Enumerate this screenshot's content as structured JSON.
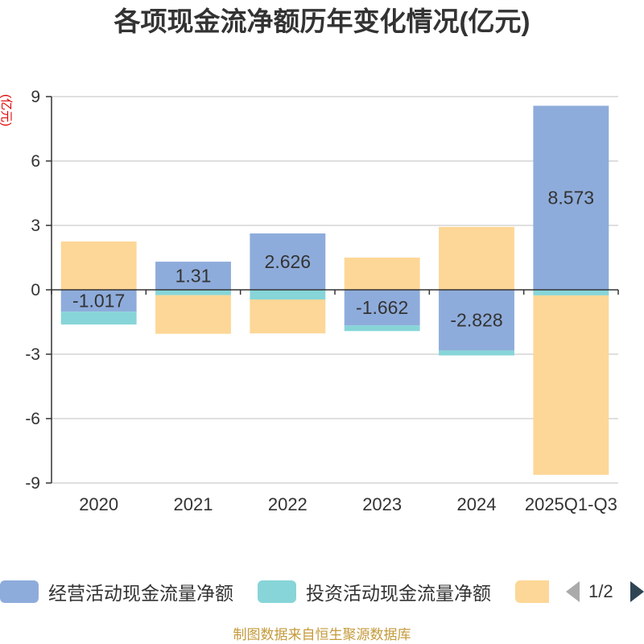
{
  "chart_data": {
    "type": "bar",
    "stacked": true,
    "title": "各项现金流净额历年变化情况(亿元)",
    "ylabel": "(亿元)",
    "xlabel": "",
    "ylim": [
      -9,
      9
    ],
    "yticks": [
      9,
      6,
      3,
      0,
      -3,
      -6,
      -9
    ],
    "grid": true,
    "legend": "bottom",
    "categories": [
      "2020",
      "2021",
      "2022",
      "2023",
      "2024",
      "2025Q1-Q3"
    ],
    "series": [
      {
        "name": "经营活动现金流量净额",
        "color": "#8eacdb",
        "values": [
          -1.017,
          1.31,
          2.626,
          -1.662,
          -2.828,
          8.573
        ],
        "labels": [
          "-1.017",
          "1.31",
          "2.626",
          "-1.662",
          "-2.828",
          "8.573"
        ]
      },
      {
        "name": "投资活动现金流量净额",
        "color": "#87d5d8",
        "values": [
          -0.6,
          -0.25,
          -0.45,
          -0.26,
          -0.23,
          -0.26
        ]
      },
      {
        "color": "#fdd797",
        "values": [
          2.25,
          -1.8,
          -1.58,
          1.5,
          2.93,
          -8.36
        ]
      }
    ]
  },
  "legend": {
    "page_indicator": "1/2",
    "prev_icon": "chevron-left-icon",
    "next_icon": "chevron-right-icon",
    "prev_color": "#aaaaaa",
    "next_color": "#2f4554"
  },
  "footer": "制图数据来自恒生聚源数据库",
  "colors": {
    "ylabel": "#e00000",
    "footer": "#c49a3c",
    "grid": "#cccccc",
    "axis": "#333333"
  }
}
